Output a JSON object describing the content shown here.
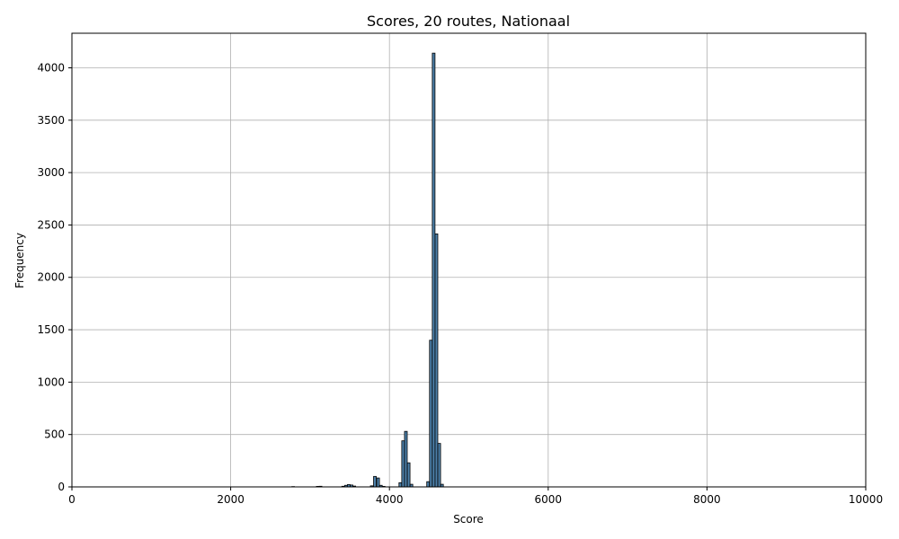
{
  "chart_data": {
    "type": "bar",
    "title": "Scores, 20 routes, Nationaal",
    "xlabel": "Score",
    "ylabel": "Frequency",
    "xlim": [
      0,
      10000
    ],
    "ylim": [
      0,
      4330
    ],
    "xticks": [
      0,
      2000,
      4000,
      6000,
      8000,
      10000
    ],
    "yticks": [
      0,
      500,
      1000,
      1500,
      2000,
      2500,
      3000,
      3500,
      4000
    ],
    "grid": true,
    "bin_width": 34,
    "bar_color": "#4c7fa8",
    "edge_color": "#000000",
    "bins": [
      {
        "x": 2770,
        "y": 3
      },
      {
        "x": 3080,
        "y": 5
      },
      {
        "x": 3115,
        "y": 6
      },
      {
        "x": 3400,
        "y": 6
      },
      {
        "x": 3435,
        "y": 15
      },
      {
        "x": 3470,
        "y": 22
      },
      {
        "x": 3505,
        "y": 18
      },
      {
        "x": 3540,
        "y": 8
      },
      {
        "x": 3760,
        "y": 10
      },
      {
        "x": 3800,
        "y": 100
      },
      {
        "x": 3840,
        "y": 85
      },
      {
        "x": 3875,
        "y": 15
      },
      {
        "x": 3910,
        "y": 5
      },
      {
        "x": 4120,
        "y": 40
      },
      {
        "x": 4155,
        "y": 440
      },
      {
        "x": 4190,
        "y": 530
      },
      {
        "x": 4225,
        "y": 230
      },
      {
        "x": 4260,
        "y": 25
      },
      {
        "x": 4470,
        "y": 50
      },
      {
        "x": 4505,
        "y": 1400
      },
      {
        "x": 4540,
        "y": 4140
      },
      {
        "x": 4575,
        "y": 2415
      },
      {
        "x": 4610,
        "y": 415
      },
      {
        "x": 4645,
        "y": 25
      }
    ]
  }
}
